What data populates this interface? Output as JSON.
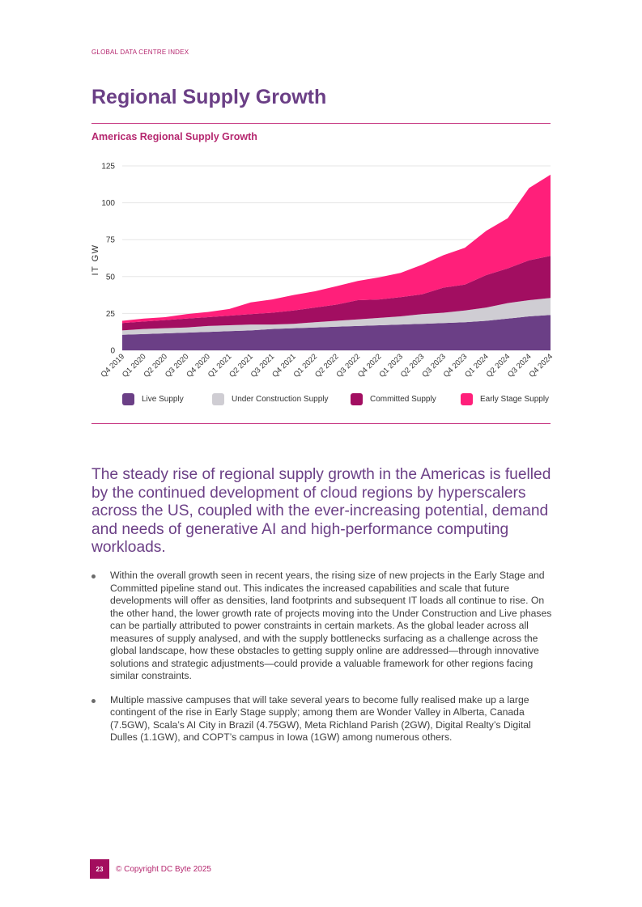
{
  "header": {
    "running_head": "GLOBAL DATA CENTRE INDEX"
  },
  "page_title": "Regional Supply Growth",
  "chart_title": "Americas Regional Supply Growth",
  "chart_data": {
    "type": "area",
    "stacked": true,
    "title": "Americas Regional Supply Growth",
    "ylabel": "IT GW",
    "xlabel": "",
    "ylim": [
      0,
      125
    ],
    "yticks": [
      0,
      25,
      50,
      75,
      100,
      125
    ],
    "grid": true,
    "legend_position": "bottom",
    "categories": [
      "Q4 2019",
      "Q1 2020",
      "Q2 2020",
      "Q3 2020",
      "Q4 2020",
      "Q1 2021",
      "Q2 2021",
      "Q3 2021",
      "Q4 2021",
      "Q1 2022",
      "Q2 2022",
      "Q3 2022",
      "Q4 2022",
      "Q1 2023",
      "Q2 2023",
      "Q3 2023",
      "Q4 2023",
      "Q1 2024",
      "Q2 2024",
      "Q3 2024",
      "Q4 2024"
    ],
    "series": [
      {
        "name": "Live Supply",
        "color": "#6b3f86",
        "values": [
          10.5,
          11,
          11.5,
          12,
          12.5,
          13,
          13.5,
          14.5,
          15,
          15.5,
          16,
          16.5,
          17,
          17.5,
          18,
          18.5,
          19,
          20,
          21.5,
          23,
          24
        ]
      },
      {
        "name": "Under Construction Supply",
        "color": "#cfcdd3",
        "values": [
          3,
          3.5,
          3.5,
          3.5,
          4,
          4,
          4,
          3,
          3,
          3.5,
          4,
          4.5,
          5,
          5.5,
          6.5,
          7,
          8,
          9,
          10.5,
          11,
          11.5
        ]
      },
      {
        "name": "Committed Supply",
        "color": "#a20e61",
        "values": [
          5,
          5,
          5.5,
          6,
          6,
          6.5,
          7,
          8,
          9,
          10,
          11,
          13,
          12.5,
          13,
          13.5,
          17,
          17.5,
          22,
          23.5,
          27,
          28.5
        ]
      },
      {
        "name": "Early Stage Supply",
        "color": "#ff1f7a",
        "values": [
          1.5,
          2,
          2,
          3,
          3.5,
          4.5,
          8,
          9,
          10.5,
          11,
          12.5,
          13,
          15,
          16.5,
          20,
          22,
          25,
          30,
          34,
          49,
          55
        ]
      }
    ]
  },
  "lead_paragraph": "The steady rise of regional supply growth in the Americas is fuelled by the continued development of cloud regions by hyperscalers across the US, coupled with the ever-increasing potential, demand and needs of generative AI and high-performance computing workloads.",
  "bullets": [
    "Within the overall growth seen in recent years, the rising size of new projects in the Early Stage and Committed pipeline stand out. This indicates the increased capabilities and scale that future developments will offer as densities, land footprints and subsequent IT loads all continue to rise. On the other hand, the lower growth rate of projects moving into the Under Construction and Live phases can be partially attributed to power constraints in certain markets. As the global leader across all measures of supply analysed, and with the supply bottlenecks surfacing as a challenge across the global landscape, how these obstacles to getting supply online are addressed—through innovative solutions and strategic adjustments—could provide a valuable framework for other regions facing similar constraints.",
    "Multiple massive campuses that will take several years to become fully realised make up a large contingent of the rise in Early Stage supply; among them are Wonder Valley in Alberta, Canada (7.5GW), Scala’s AI City in Brazil (4.75GW), Meta Richland Parish (2GW), Digital Realty’s Digital Dulles (1.1GW), and COPT’s campus in Iowa (1GW) among numerous others."
  ],
  "footer": {
    "page_number": "23",
    "copyright": "© Copyright DC Byte 2025"
  }
}
